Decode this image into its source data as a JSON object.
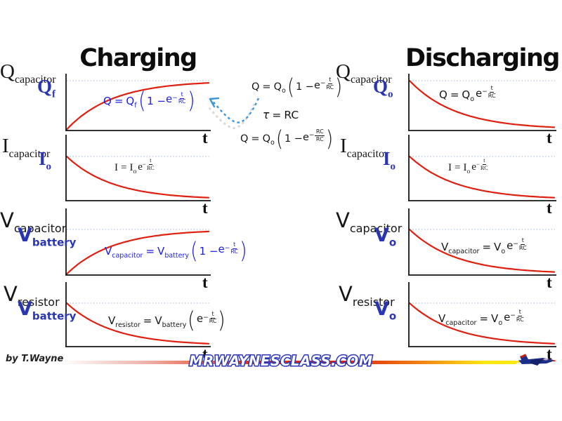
{
  "header": {
    "charging_title": "Charging",
    "discharging_title": "Discharging"
  },
  "sym": {
    "eq": "="
  },
  "colors": {
    "curve_red": "#df1f0f",
    "label_blue": "#2a35b0",
    "equation_blue": "#1d1de0",
    "asymptote_dotted": "#b9c6dd",
    "arrow_blue": "#3d96d6",
    "title_black": "#0d0d0d",
    "footer_red": "#df2008",
    "footer_yellow": "#ffe812",
    "site_outline_blue": "#2a36b8"
  },
  "middle": {
    "eq1": {
      "lhs": "Q",
      "lhs_sub": "",
      "rhs": "Q",
      "rhs_sub": "o",
      "open": "(",
      "pre": "1 − ",
      "base": "e",
      "sign": "−",
      "num": "t",
      "den": "RC",
      "close": ")"
    },
    "tau": {
      "lhs": "τ",
      "rhs": "RC"
    },
    "eq2": {
      "lhs": "Q",
      "lhs_sub": "",
      "rhs": "Q",
      "rhs_sub": "o",
      "open": "(",
      "pre": "1 − ",
      "base": "e",
      "sign": "−",
      "num": "RC",
      "den": "RC",
      "close": ")"
    }
  },
  "graphs": [
    {
      "section": "Charging",
      "axis_main": "Q",
      "axis_main_sub": "capacitor",
      "axis_value": "Q",
      "axis_value_sub": "f",
      "x_label": "t",
      "curve": "rise",
      "eq": {
        "lhs": "Q",
        "lhs_sub": "",
        "rhs": "Q",
        "rhs_sub": "f",
        "open": "(",
        "pre": "1 − ",
        "base": "e",
        "sign": "−",
        "num": "t",
        "den": "RC",
        "close": ")"
      }
    },
    {
      "section": "Charging",
      "axis_main": "I",
      "axis_main_sub": "capacitor",
      "axis_value": "I",
      "axis_value_sub": "o",
      "x_label": "t",
      "curve": "decay",
      "eq": {
        "lhs": "I",
        "lhs_sub": "",
        "rhs": "I",
        "rhs_sub": "o",
        "open": "",
        "pre": "",
        "base": "e",
        "sign": "−",
        "num": "t",
        "den": "RC",
        "close": ""
      }
    },
    {
      "section": "Charging",
      "axis_main": "V",
      "axis_main_sub": "capacitor",
      "axis_value": "V",
      "axis_value_sub": "battery",
      "x_label": "t",
      "curve": "rise",
      "eq": {
        "lhs": "V",
        "lhs_sub": "capacitor",
        "rhs": "V",
        "rhs_sub": "battery",
        "open": "(",
        "pre": "1 − ",
        "base": "e",
        "sign": "−",
        "num": "t",
        "den": "RC",
        "close": ")"
      }
    },
    {
      "section": "Charging",
      "axis_main": "V",
      "axis_main_sub": "resistor",
      "axis_value": "V",
      "axis_value_sub": "battery",
      "x_label": "t",
      "curve": "decay",
      "eq": {
        "lhs": "V",
        "lhs_sub": "resistor",
        "rhs": "V",
        "rhs_sub": "battery",
        "open": "(",
        "pre": "",
        "base": "e",
        "sign": "−",
        "num": "t",
        "den": "RC",
        "close": ")"
      }
    },
    {
      "section": "Discharging",
      "axis_main": "Q",
      "axis_main_sub": "capacitor",
      "axis_value": "Q",
      "axis_value_sub": "o",
      "x_label": "t",
      "curve": "decay",
      "eq": {
        "lhs": "Q",
        "lhs_sub": "",
        "rhs": "Q",
        "rhs_sub": "o",
        "open": "",
        "pre": "",
        "base": "e",
        "sign": "−",
        "num": "t",
        "den": "RC",
        "close": ""
      }
    },
    {
      "section": "Discharging",
      "axis_main": "I",
      "axis_main_sub": "capacitor",
      "axis_value": "I",
      "axis_value_sub": "o",
      "x_label": "t",
      "curve": "decay",
      "eq": {
        "lhs": "I",
        "lhs_sub": "",
        "rhs": "I",
        "rhs_sub": "o",
        "open": "",
        "pre": "",
        "base": "e",
        "sign": "−",
        "num": "t",
        "den": "RC",
        "close": ""
      }
    },
    {
      "section": "Discharging",
      "axis_main": "V",
      "axis_main_sub": "capacitor",
      "axis_value": "V",
      "axis_value_sub": "o",
      "x_label": "t",
      "curve": "decay",
      "eq": {
        "lhs": "V",
        "lhs_sub": "capacitor",
        "rhs": "V",
        "rhs_sub": "o",
        "open": "",
        "pre": "",
        "base": "e",
        "sign": "−",
        "num": "t",
        "den": "RC",
        "close": ""
      }
    },
    {
      "section": "Discharging",
      "axis_main": "V",
      "axis_main_sub": "resistor",
      "axis_value": "V",
      "axis_value_sub": "o",
      "x_label": "t",
      "curve": "decay",
      "eq": {
        "lhs": "V",
        "lhs_sub": "capacitor",
        "rhs": "V",
        "rhs_sub": "o",
        "open": "",
        "pre": "",
        "base": "e",
        "sign": "−",
        "num": "t",
        "den": "RC",
        "close": ""
      }
    }
  ],
  "footer": {
    "credit": "by T.Wayne",
    "site": "MRWAYNESCLASS.COM"
  }
}
